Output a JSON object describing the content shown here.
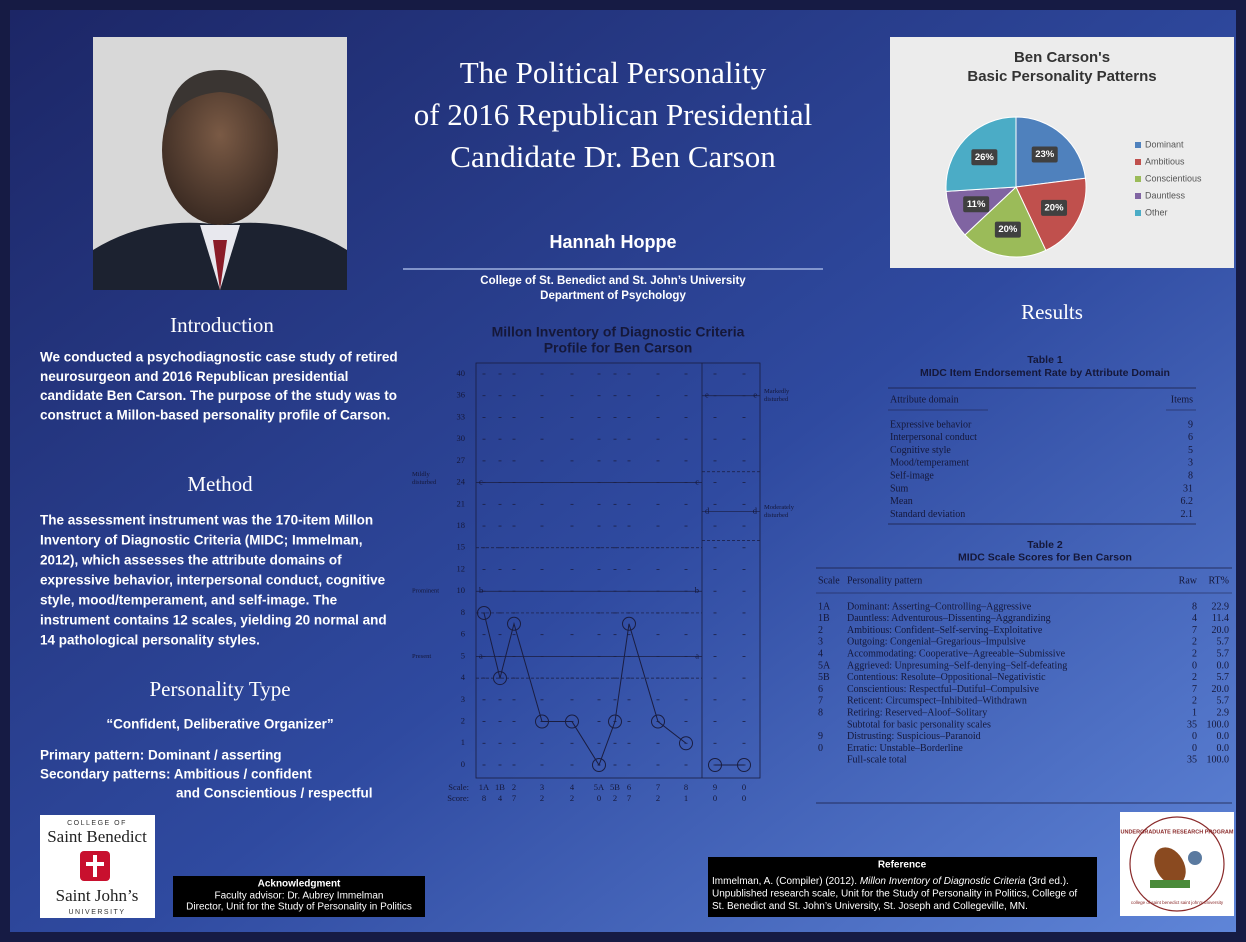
{
  "header": {
    "title_lines": [
      "The Political Personality",
      "of 2016 Republican Presidential",
      "Candidate Dr. Ben Carson"
    ],
    "author": "Hannah Hoppe",
    "affiliation_lines": [
      "College of St. Benedict and St. John’s University",
      "Department of Psychology"
    ]
  },
  "introduction": {
    "heading": "Introduction",
    "lines": [
      "We conducted a psychodiagnostic case study of retired",
      "neurosurgeon and 2016 Republican presidential",
      "candidate Ben Carson. The purpose of the study was to",
      "construct a Millon-based personality profile of Carson."
    ]
  },
  "method": {
    "heading": "Method",
    "lines": [
      "The assessment instrument was the 170-item Millon",
      "Inventory of Diagnostic Criteria (MIDC; Immelman,",
      "2012), which assesses the attribute domains of",
      "expressive behavior, interpersonal conduct, cognitive",
      "style, mood/temperament, and self-image. The",
      "instrument contains 12 scales, yielding 20 normal and",
      "14 pathological personality styles."
    ]
  },
  "personality_type": {
    "heading": "Personality Type",
    "motto": "“Confident, Deliberative Organizer”",
    "primary": "Primary pattern: Dominant / asserting",
    "secondary_lines": [
      "Secondary patterns:  Ambitious / confident",
      "and Conscientious / respectful"
    ]
  },
  "logo_left": {
    "top": "COLLEGE OF",
    "name1": "Saint Benedict",
    "name2": "Saint John’s",
    "bottom": "UNIVERSITY"
  },
  "acknowledgment": {
    "heading": "Acknowledgment",
    "lines": [
      "Faculty advisor: Dr. Aubrey Immelman",
      "Director, Unit for the Study of Personality in Politics"
    ]
  },
  "results": {
    "heading": "Results"
  },
  "reference": {
    "heading": "Reference",
    "line1": [
      "Immelman, A. (Compiler) (2012). ",
      "Millon Inventory of Diagnostic Criteria",
      " (3rd ed.)."
    ],
    "lines": [
      "Unpublished research scale, Unit for the Study of Personality in Politics, College of",
      "St. Benedict and St. John’s University, St. Joseph and Collegeville, MN."
    ]
  },
  "logo_right": {
    "text": "UNDERGRADUATE RESEARCH PROGRAM",
    "sub": "college of saint benedict saint john's university"
  },
  "chart_data": [
    {
      "type": "pie",
      "title_lines": [
        "Ben Carson's",
        "Basic Personality Patterns"
      ],
      "categories": [
        "Dominant",
        "Ambitious",
        "Conscientious",
        "Dauntless",
        "Other"
      ],
      "values": [
        23,
        20,
        20,
        11,
        26
      ],
      "value_labels": [
        "23%",
        "20%",
        "20%",
        "11%",
        "26%"
      ],
      "colors": [
        "#4f81bd",
        "#c0504d",
        "#9bbb59",
        "#8064a2",
        "#4bacc6"
      ],
      "legend": "right"
    },
    {
      "type": "profile",
      "title_lines": [
        "Millon Inventory of Diagnostic Criteria",
        "Profile for Ben Carson"
      ],
      "categories": [
        "1A",
        "1B",
        "2",
        "3",
        "4",
        "5A",
        "5B",
        "6",
        "7",
        "8",
        "9",
        "0"
      ],
      "values": [
        8,
        4,
        7,
        2,
        2,
        0,
        2,
        7,
        2,
        1,
        0,
        0
      ],
      "yticks": [
        40,
        36,
        33,
        30,
        27,
        24,
        21,
        18,
        15,
        12,
        10,
        8,
        6,
        5,
        4,
        3,
        2,
        1,
        0
      ],
      "x_label": "Scale:",
      "score_label": "Score:",
      "thresholds": [
        {
          "value": 24,
          "letter": "c",
          "label_lines": [
            "Mildly",
            "disturbed"
          ],
          "section": "basic"
        },
        {
          "value": 10,
          "letter": "b",
          "label_lines": [
            "Prominent"
          ],
          "section": "basic"
        },
        {
          "value": 5,
          "letter": "a",
          "label_lines": [
            "Present"
          ],
          "section": "basic"
        },
        {
          "value": 36,
          "letter": "e",
          "label_lines": [
            "Markedly",
            "disturbed"
          ],
          "section": "severe"
        },
        {
          "value": 20,
          "letter": "d",
          "label_lines": [
            "Moderately",
            "disturbed"
          ],
          "section": "severe"
        }
      ],
      "dashed_levels": [
        15,
        8,
        4
      ],
      "dashed_levels_severe": [
        25.5,
        16
      ]
    }
  ],
  "table1": {
    "title_lines": [
      "Table 1",
      "MIDC Item Endorsement Rate by Attribute Domain"
    ],
    "columns": [
      "Attribute domain",
      "Items"
    ],
    "rows": [
      [
        "Expressive behavior",
        "9"
      ],
      [
        "Interpersonal conduct",
        "6"
      ],
      [
        "Cognitive style",
        "5"
      ],
      [
        "Mood/temperament",
        "3"
      ],
      [
        "Self-image",
        "8"
      ],
      [
        "Sum",
        "31"
      ],
      [
        "Mean",
        "6.2"
      ],
      [
        "Standard deviation",
        "2.1"
      ]
    ]
  },
  "table2": {
    "title_lines": [
      "Table 2",
      "MIDC Scale Scores for Ben Carson"
    ],
    "columns": [
      "Scale",
      "Personality pattern",
      "Raw",
      "RT%"
    ],
    "rows": [
      {
        "scale": "1A",
        "pattern": "Dominant: Asserting–Controlling–Aggressive",
        "raw": "8",
        "rt": "22.9"
      },
      {
        "scale": "1B",
        "pattern": "Dauntless: Adventurous–Dissenting–Aggrandizing",
        "raw": "4",
        "rt": "11.4"
      },
      {
        "scale": "2",
        "pattern": "Ambitious: Confident–Self-serving–Exploitative",
        "raw": "7",
        "rt": "20.0"
      },
      {
        "scale": "3",
        "pattern": "Outgoing: Congenial–Gregarious–Impulsive",
        "raw": "2",
        "rt": "5.7"
      },
      {
        "scale": "4",
        "pattern": "Accommodating: Cooperative–Agreeable–Submissive",
        "raw": "2",
        "rt": "5.7"
      },
      {
        "scale": "5A",
        "pattern": "Aggrieved: Unpresuming–Self-denying–Self-defeating",
        "raw": "0",
        "rt": "0.0"
      },
      {
        "scale": "5B",
        "pattern": "Contentious: Resolute–Oppositional–Negativistic",
        "raw": "2",
        "rt": "5.7"
      },
      {
        "scale": "6",
        "pattern": "Conscientious: Respectful–Dutiful–Compulsive",
        "raw": "7",
        "rt": "20.0"
      },
      {
        "scale": "7",
        "pattern": "Reticent: Circumspect–Inhibited–Withdrawn",
        "raw": "2",
        "rt": "5.7"
      },
      {
        "scale": "8",
        "pattern": "Retiring: Reserved–Aloof–Solitary",
        "raw": "1",
        "rt": "2.9"
      },
      {
        "pattern": "Subtotal for basic personality scales",
        "raw": "35",
        "rt": "100.0"
      },
      {
        "scale": "9",
        "pattern": "Distrusting: Suspicious–Paranoid",
        "raw": "0",
        "rt": "0.0"
      },
      {
        "scale": "0",
        "pattern": "Erratic: Unstable–Borderline",
        "raw": "0",
        "rt": "0.0"
      },
      {
        "pattern": "Full-scale total",
        "raw": "35",
        "rt": "100.0"
      }
    ]
  }
}
